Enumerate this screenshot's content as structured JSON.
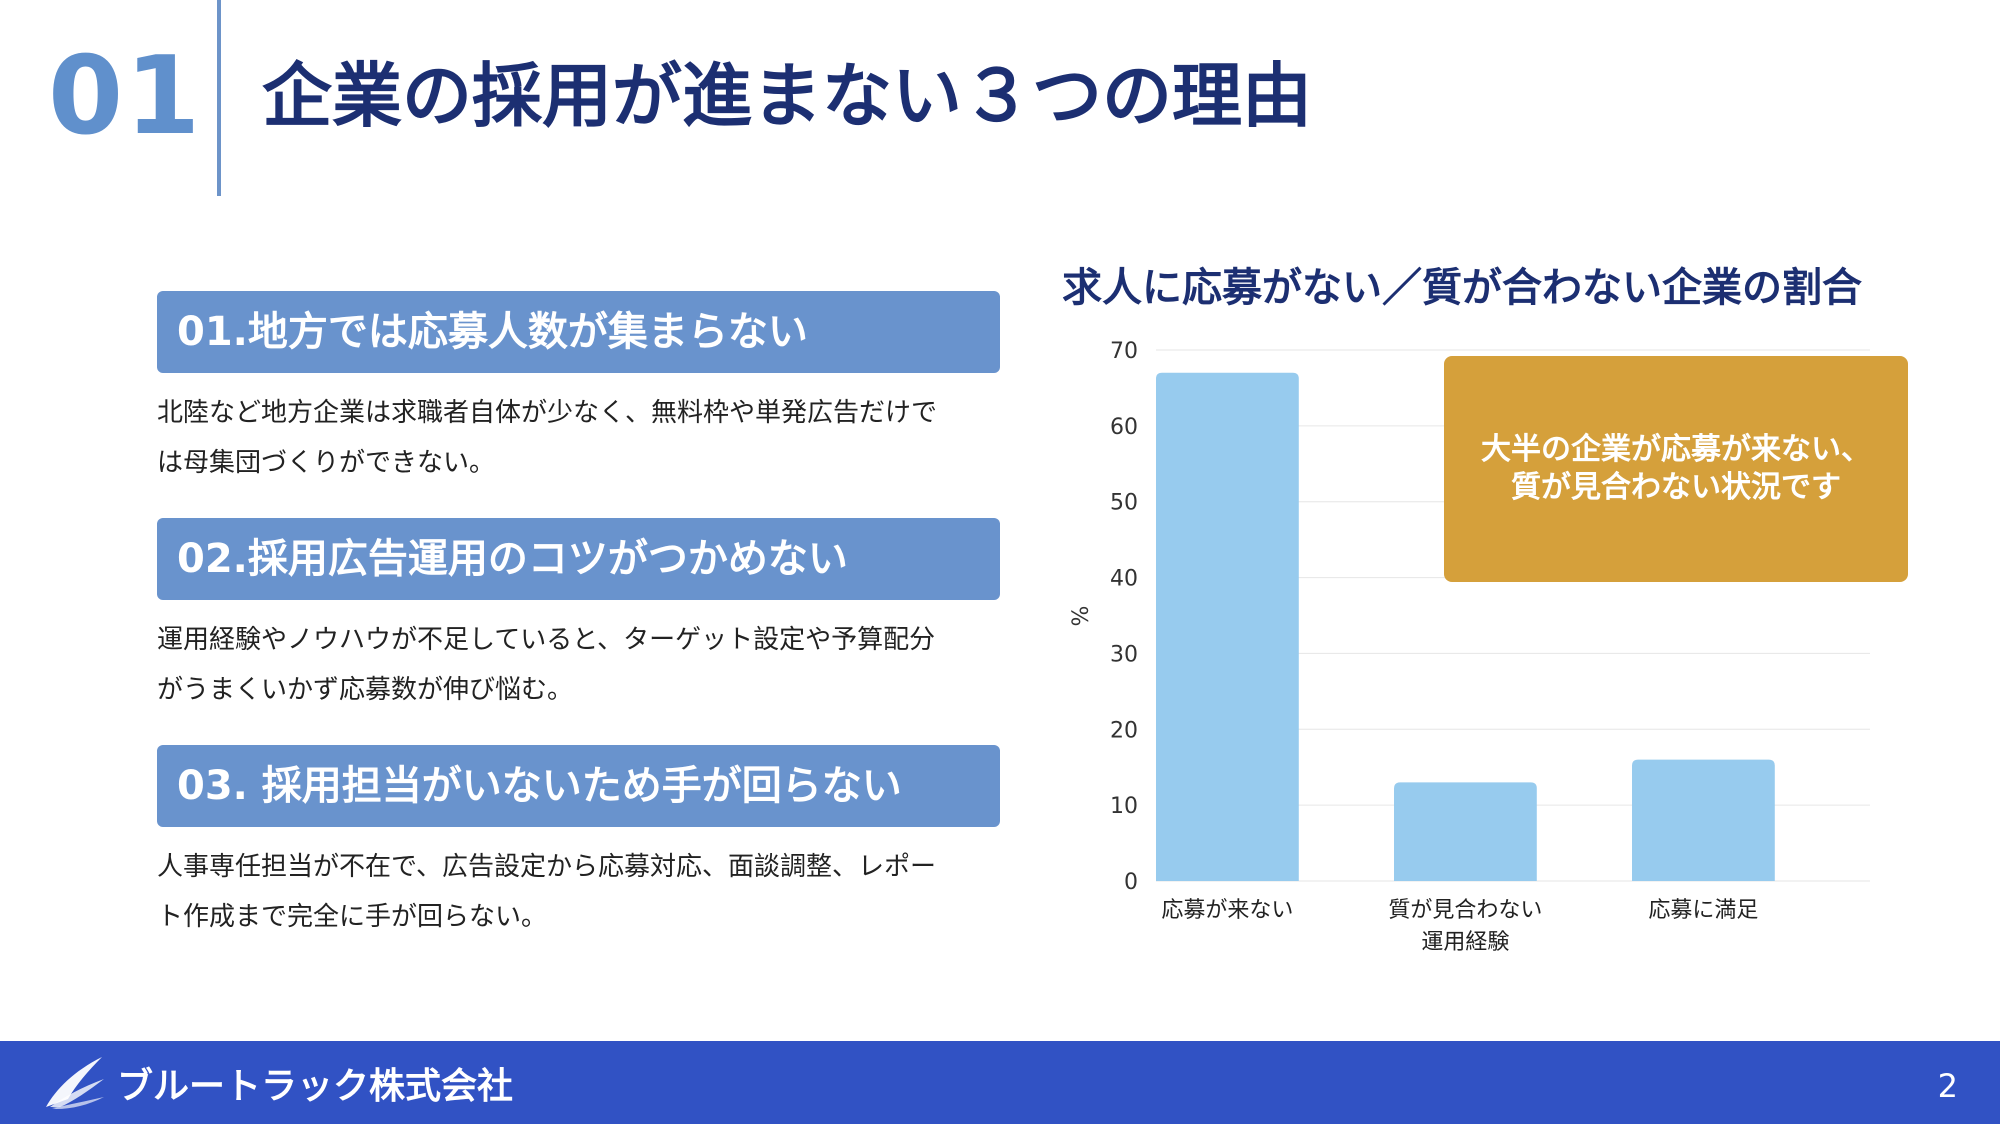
{
  "header": {
    "section_number": "01",
    "title": "企業の採用が進まない３つの理由"
  },
  "reasons": [
    {
      "heading": "01.地方では応募人数が集まらない",
      "lines": [
        "北陸など地方企業は求職者自体が少なく、無料枠や単発広告だけで",
        "は母集団づくりができない。"
      ]
    },
    {
      "heading": "02.採用広告運用のコツがつかめない",
      "lines": [
        "運用経験やノウハウが不足していると、ターゲット設定や予算配分",
        "がうまくいかず応募数が伸び悩む。"
      ]
    },
    {
      "heading": "03. 採用担当がいないため手が回らない",
      "lines": [
        "人事専任担当が不在で、広告設定から応募対応、面談調整、レポー",
        "ト作成まで完全に手が回らない。"
      ]
    }
  ],
  "chart_data": {
    "type": "bar",
    "title": "求人に応募がない／質が合わない企業の割合",
    "categories": [
      [
        "応募が来ない"
      ],
      [
        "質が見合わない",
        "運用経験"
      ],
      [
        "応募に満足"
      ]
    ],
    "values": [
      67,
      13,
      16
    ],
    "ylabel": "%",
    "ylim": [
      0,
      70
    ],
    "yticks": [
      0,
      10,
      20,
      30,
      40,
      50,
      60,
      70
    ],
    "grid": true,
    "bar_color": "#97cbee",
    "callout": [
      "大半の企業が応募が来ない、",
      "質が見合わない状況です"
    ],
    "callout_color": "#d5a03b"
  },
  "footer": {
    "company": "ブルートラック株式会社",
    "page_number": "2",
    "logo_icon": "feather-wing-icon"
  },
  "colors": {
    "navy": "#1c2f72",
    "accent_blue": "#6993cd",
    "footer_blue": "#3152c4"
  }
}
